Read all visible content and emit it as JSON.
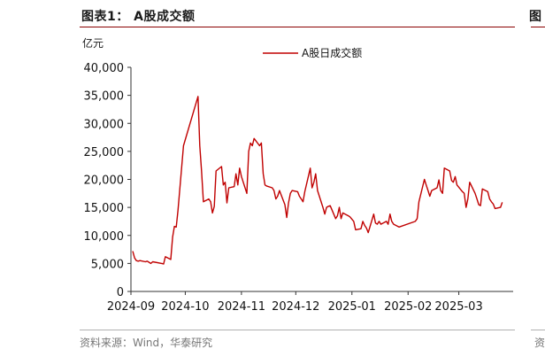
{
  "figure": {
    "title": "图表1： A股成交额",
    "source": "资料来源：Wind，华泰研究",
    "right_stub_text": "图",
    "right_source_stub": "资"
  },
  "colors": {
    "line": "#c00000",
    "rule": "#8a0000"
  },
  "chart_data": {
    "type": "line",
    "title": "",
    "ylabel": "亿元",
    "xlabel": "",
    "ylim": [
      0,
      40000
    ],
    "yticks": [
      0,
      5000,
      10000,
      15000,
      20000,
      25000,
      30000,
      35000,
      40000
    ],
    "ytick_labels": [
      "0",
      "5,000",
      "10,000",
      "15,000",
      "20,000",
      "25,000",
      "30,000",
      "35,000",
      "40,000"
    ],
    "xlim": [
      "2024-09-01",
      "2025-03-31"
    ],
    "xticks": [
      "2024-09-01",
      "2024-10-01",
      "2024-11-01",
      "2024-12-01",
      "2025-01-01",
      "2025-02-01",
      "2025-03-01"
    ],
    "xtick_labels": [
      "2024-09",
      "2024-10",
      "2024-11",
      "2024-12",
      "2025-01",
      "2025-02",
      "2025-03"
    ],
    "legend": {
      "position": "top-center"
    },
    "grid": false,
    "series": [
      {
        "name": "A股日成交额",
        "points": [
          [
            "2024-09-02",
            7200
          ],
          [
            "2024-09-03",
            6000
          ],
          [
            "2024-09-04",
            5500
          ],
          [
            "2024-09-05",
            5400
          ],
          [
            "2024-09-06",
            5500
          ],
          [
            "2024-09-09",
            5300
          ],
          [
            "2024-09-10",
            5400
          ],
          [
            "2024-09-11",
            5200
          ],
          [
            "2024-09-12",
            5000
          ],
          [
            "2024-09-13",
            5300
          ],
          [
            "2024-09-18",
            5000
          ],
          [
            "2024-09-19",
            4900
          ],
          [
            "2024-09-20",
            6200
          ],
          [
            "2024-09-23",
            5700
          ],
          [
            "2024-09-24",
            9700
          ],
          [
            "2024-09-25",
            11600
          ],
          [
            "2024-09-26",
            11500
          ],
          [
            "2024-09-27",
            14500
          ],
          [
            "2024-09-30",
            26000
          ],
          [
            "2024-10-08",
            34800
          ],
          [
            "2024-10-09",
            26000
          ],
          [
            "2024-10-10",
            21500
          ],
          [
            "2024-10-11",
            16000
          ],
          [
            "2024-10-14",
            16500
          ],
          [
            "2024-10-15",
            16000
          ],
          [
            "2024-10-16",
            14000
          ],
          [
            "2024-10-17",
            15200
          ],
          [
            "2024-10-18",
            21500
          ],
          [
            "2024-10-21",
            22300
          ],
          [
            "2024-10-22",
            19000
          ],
          [
            "2024-10-23",
            19500
          ],
          [
            "2024-10-24",
            15800
          ],
          [
            "2024-10-25",
            18500
          ],
          [
            "2024-10-28",
            18700
          ],
          [
            "2024-10-29",
            21000
          ],
          [
            "2024-10-30",
            19000
          ],
          [
            "2024-10-31",
            22000
          ],
          [
            "2024-11-01",
            20500
          ],
          [
            "2024-11-04",
            17500
          ],
          [
            "2024-11-05",
            25000
          ],
          [
            "2024-11-06",
            26500
          ],
          [
            "2024-11-07",
            26000
          ],
          [
            "2024-11-08",
            27300
          ],
          [
            "2024-11-11",
            26000
          ],
          [
            "2024-11-12",
            26500
          ],
          [
            "2024-11-13",
            21000
          ],
          [
            "2024-11-14",
            19000
          ],
          [
            "2024-11-15",
            18800
          ],
          [
            "2024-11-18",
            18500
          ],
          [
            "2024-11-19",
            18000
          ],
          [
            "2024-11-20",
            16500
          ],
          [
            "2024-11-21",
            17000
          ],
          [
            "2024-11-22",
            18000
          ],
          [
            "2024-11-25",
            15500
          ],
          [
            "2024-11-26",
            13200
          ],
          [
            "2024-11-27",
            15800
          ],
          [
            "2024-11-28",
            17500
          ],
          [
            "2024-11-29",
            18000
          ],
          [
            "2024-12-02",
            17800
          ],
          [
            "2024-12-03",
            17000
          ],
          [
            "2024-12-04",
            16500
          ],
          [
            "2024-12-05",
            16000
          ],
          [
            "2024-12-06",
            17800
          ],
          [
            "2024-12-09",
            22000
          ],
          [
            "2024-12-10",
            18500
          ],
          [
            "2024-12-11",
            19500
          ],
          [
            "2024-12-12",
            21000
          ],
          [
            "2024-12-13",
            18000
          ],
          [
            "2024-12-16",
            15000
          ],
          [
            "2024-12-17",
            13800
          ],
          [
            "2024-12-18",
            15000
          ],
          [
            "2024-12-19",
            15200
          ],
          [
            "2024-12-20",
            15300
          ],
          [
            "2024-12-23",
            13000
          ],
          [
            "2024-12-24",
            13500
          ],
          [
            "2024-12-25",
            15000
          ],
          [
            "2024-12-26",
            13000
          ],
          [
            "2024-12-27",
            14000
          ],
          [
            "2024-12-30",
            13500
          ],
          [
            "2024-12-31",
            13300
          ],
          [
            "2025-01-02",
            12500
          ],
          [
            "2025-01-03",
            11000
          ],
          [
            "2025-01-06",
            11200
          ],
          [
            "2025-01-07",
            12500
          ],
          [
            "2025-01-08",
            11800
          ],
          [
            "2025-01-09",
            11300
          ],
          [
            "2025-01-10",
            10500
          ],
          [
            "2025-01-13",
            13800
          ],
          [
            "2025-01-14",
            12200
          ],
          [
            "2025-01-15",
            12000
          ],
          [
            "2025-01-16",
            12500
          ],
          [
            "2025-01-17",
            12000
          ],
          [
            "2025-01-20",
            12500
          ],
          [
            "2025-01-21",
            12000
          ],
          [
            "2025-01-22",
            13800
          ],
          [
            "2025-01-23",
            12500
          ],
          [
            "2025-01-24",
            12000
          ],
          [
            "2025-01-27",
            11500
          ],
          [
            "2025-02-05",
            12500
          ],
          [
            "2025-02-06",
            13000
          ],
          [
            "2025-02-07",
            16000
          ],
          [
            "2025-02-10",
            20000
          ],
          [
            "2025-02-11",
            19000
          ],
          [
            "2025-02-12",
            18000
          ],
          [
            "2025-02-13",
            17000
          ],
          [
            "2025-02-14",
            18000
          ],
          [
            "2025-02-17",
            18500
          ],
          [
            "2025-02-18",
            19900
          ],
          [
            "2025-02-19",
            18000
          ],
          [
            "2025-02-20",
            17500
          ],
          [
            "2025-02-21",
            22000
          ],
          [
            "2025-02-24",
            21500
          ],
          [
            "2025-02-25",
            19800
          ],
          [
            "2025-02-26",
            19500
          ],
          [
            "2025-02-27",
            20500
          ],
          [
            "2025-02-28",
            19000
          ],
          [
            "2025-03-03",
            17800
          ],
          [
            "2025-03-04",
            17500
          ],
          [
            "2025-03-05",
            15000
          ],
          [
            "2025-03-06",
            16500
          ],
          [
            "2025-03-07",
            19500
          ],
          [
            "2025-03-10",
            17500
          ],
          [
            "2025-03-11",
            16500
          ],
          [
            "2025-03-12",
            15500
          ],
          [
            "2025-03-13",
            15300
          ],
          [
            "2025-03-14",
            18300
          ],
          [
            "2025-03-17",
            17800
          ],
          [
            "2025-03-18",
            16500
          ],
          [
            "2025-03-19",
            16000
          ],
          [
            "2025-03-20",
            15600
          ],
          [
            "2025-03-21",
            14800
          ],
          [
            "2025-03-24",
            15000
          ],
          [
            "2025-03-25",
            15900
          ]
        ]
      }
    ]
  }
}
